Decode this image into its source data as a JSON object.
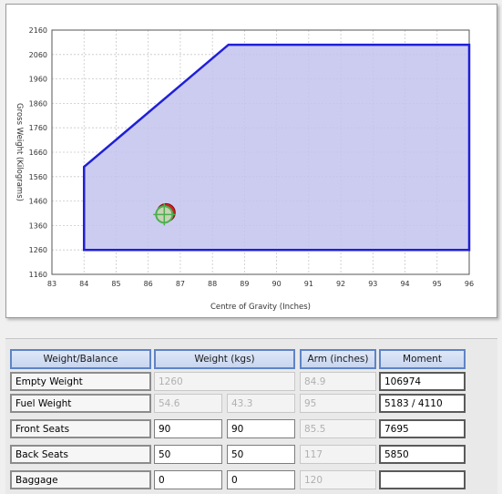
{
  "chart_data": {
    "type": "area",
    "title": "",
    "xlabel": "Centre of Gravity (Inches)",
    "ylabel": "Gross Weight (Kilograms)",
    "xlim": [
      83,
      96
    ],
    "ylim": [
      1160,
      2160
    ],
    "x_ticks": [
      "83",
      "84",
      "85",
      "86",
      "87",
      "88",
      "89",
      "90",
      "91",
      "92",
      "93",
      "94",
      "95",
      "96"
    ],
    "y_ticks": [
      "2160",
      "2060",
      "1960",
      "1860",
      "1760",
      "1660",
      "1560",
      "1460",
      "1360",
      "1260",
      "1160"
    ],
    "grid": true,
    "envelope": {
      "x": [
        84,
        84,
        88.5,
        96,
        96,
        84
      ],
      "y": [
        1260,
        1600,
        2100,
        2100,
        1260,
        1260
      ],
      "fill_color": "#c3c3ee",
      "line_color": "#1f1fd8"
    },
    "cg_marker": {
      "x": 86.5,
      "y": 1405,
      "colors": [
        "#d02020",
        "#4caf50"
      ]
    }
  },
  "table": {
    "headers": {
      "weight_balance": "Weight/Balance",
      "weight": "Weight (kgs)",
      "arm": "Arm (inches)",
      "moment": "Moment"
    },
    "rows": [
      {
        "label": "Empty Weight",
        "weight1": "1260",
        "weight2": "",
        "arm": "84.9",
        "moment": "106974"
      },
      {
        "label": "Fuel Weight",
        "weight1": "54.6",
        "weight2": "43.3",
        "arm": "95",
        "moment": "5183 / 4110"
      },
      {
        "label": "Front Seats",
        "weight1": "90",
        "weight2": "90",
        "arm": "85.5",
        "moment": "7695"
      },
      {
        "label": "Back Seats",
        "weight1": "50",
        "weight2": "50",
        "arm": "117",
        "moment": "5850"
      },
      {
        "label": "Baggage",
        "weight1": "0",
        "weight2": "0",
        "arm": "120",
        "moment": ""
      }
    ]
  }
}
